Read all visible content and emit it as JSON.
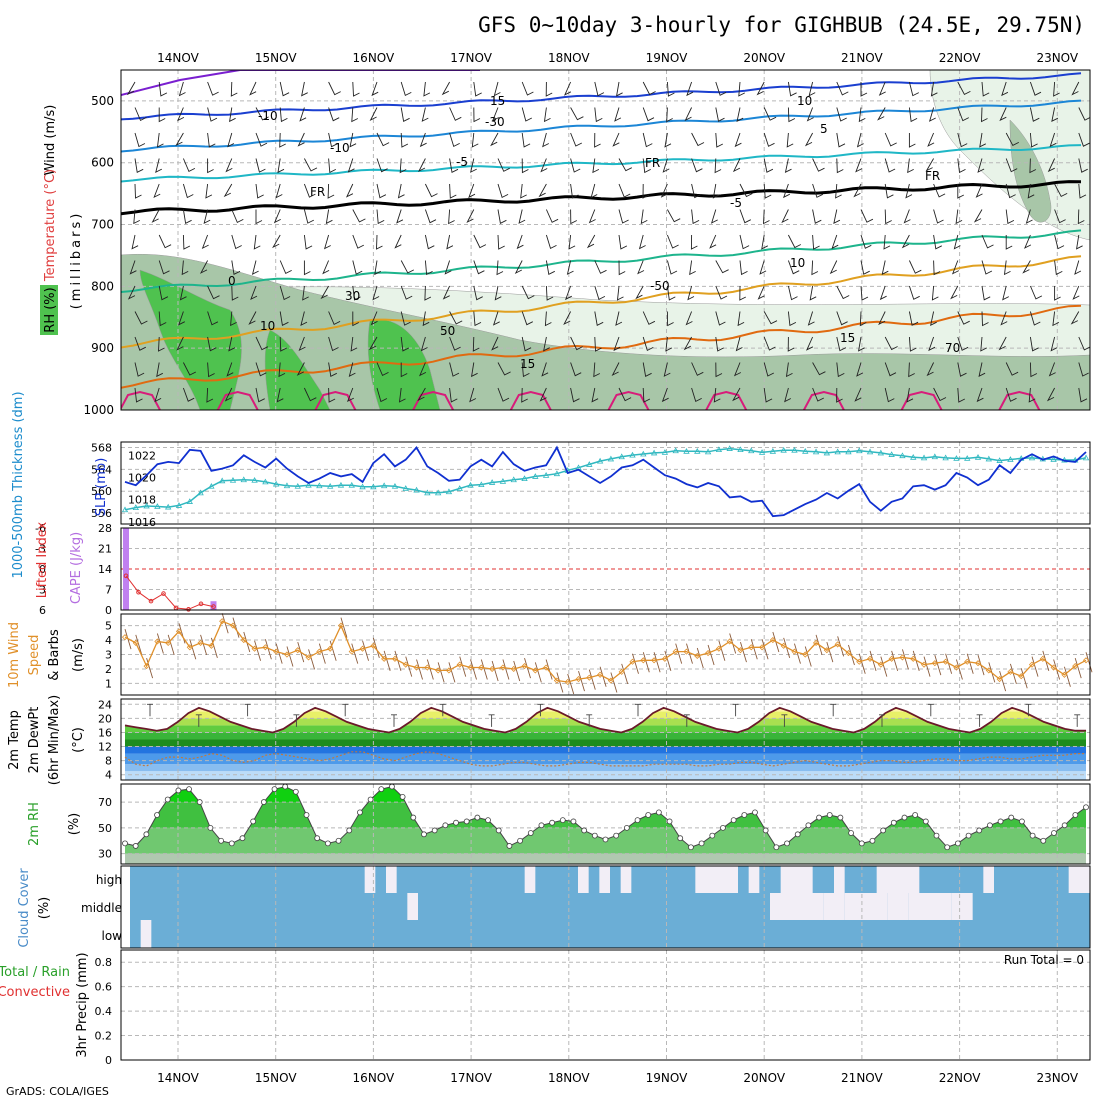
{
  "title": "GFS 0~10day 3-hourly for GIGHBUB (24.5E, 29.75N)",
  "footer": "GrADS: COLA/IGES",
  "dates": [
    "14NOV",
    "15NOV",
    "16NOV",
    "17NOV",
    "18NOV",
    "19NOV",
    "20NOV",
    "21NOV",
    "22NOV",
    "23NOV"
  ],
  "colors": {
    "rh_dark": "#4fc24f",
    "rh_mid": "#a8c6a8",
    "rh_light": "#e8f3e8",
    "cape": "#c080f0",
    "li": "#e03030",
    "wind": "#e0902a",
    "slp": "#1030d0",
    "thick": "#30b8c0",
    "cloud": "#6baed6",
    "cloud_clear": "#f2eef6"
  },
  "upper": {
    "labels": {
      "wind": "Wind (m/s)",
      "temp": "Temperature (°C)",
      "rh": "RH (%)",
      "mb": "(millibars)"
    },
    "levels": [
      "500",
      "600",
      "700",
      "800",
      "900",
      "1000"
    ],
    "contour_labels": [
      "15",
      "10",
      "-10",
      "5",
      "-5",
      "FR",
      "FR",
      "FR",
      "-5",
      "0",
      "10",
      "10",
      "15",
      "15",
      "30",
      "-30",
      "-50",
      "50",
      "70",
      "-10"
    ]
  },
  "slp": {
    "labels": {
      "thick": "1000-500mb Thickness (dm)",
      "slp": "SLP (mb)"
    },
    "left_ticks": [
      "568",
      "564",
      "560",
      "556"
    ],
    "right_ticks": [
      "1022",
      "1020",
      "1018",
      "1016"
    ],
    "chart_data": {
      "type": "line",
      "series": [
        {
          "name": "SLP (mb)",
          "values": [
            1019.6,
            1019.3,
            1020.2,
            1021.2,
            1021.4,
            1021.3,
            1022.5,
            1022.4,
            1020.6,
            1020.8,
            1021.1,
            1022.0,
            1021.4,
            1020.9,
            1021.7,
            1020.8,
            1020.1,
            1019.5,
            1019.9,
            1020.4,
            1020.1,
            1020.3,
            1019.6,
            1021.3,
            1022.1,
            1021.0,
            1021.6,
            1022.7,
            1021.0,
            1020.4,
            1019.7,
            1019.8,
            1021.0,
            1021.6,
            1021.0,
            1022.3,
            1021.2,
            1020.6,
            1020.9,
            1021.1,
            1022.7,
            1020.4,
            1020.7,
            1020.1,
            1019.5,
            1020.1,
            1020.9,
            1021.1,
            1021.6,
            1020.9,
            1020.2,
            1019.9,
            1019.4,
            1019.1,
            1019.5,
            1019.2,
            1018.2,
            1018.3,
            1017.8,
            1017.9,
            1016.5,
            1016.6,
            1017.1,
            1017.6,
            1018.0,
            1018.6,
            1018.1,
            1018.8,
            1019.4,
            1017.8,
            1017.0,
            1017.8,
            1018.1,
            1019.2,
            1019.3,
            1018.9,
            1019.3,
            1020.4,
            1020.0,
            1019.3,
            1019.8,
            1021.1,
            1020.4,
            1021.6,
            1022.1,
            1021.6,
            1021.9,
            1021.5,
            1021.4,
            1022.3
          ]
        },
        {
          "name": "Thickness (dm)",
          "values": [
            556.6,
            557.0,
            557.3,
            557.2,
            557.1,
            557.4,
            558.1,
            559.7,
            560.9,
            561.9,
            562.0,
            562.1,
            562.0,
            561.7,
            561.3,
            561.0,
            560.9,
            561.1,
            561.0,
            560.9,
            561.1,
            561.1,
            560.8,
            560.8,
            561.0,
            560.9,
            560.5,
            560.2,
            559.7,
            559.7,
            559.9,
            560.5,
            561.1,
            561.2,
            561.6,
            561.8,
            562.1,
            562.3,
            562.7,
            562.9,
            563.2,
            563.8,
            564.3,
            564.9,
            565.5,
            565.9,
            566.3,
            566.6,
            566.8,
            567.0,
            567.1,
            567.4,
            567.3,
            567.3,
            567.2,
            567.6,
            567.8,
            567.6,
            567.4,
            567.1,
            567.3,
            567.5,
            567.5,
            567.3,
            567.2,
            567.0,
            567.2,
            567.2,
            567.4,
            567.2,
            567.0,
            566.7,
            566.5,
            566.2,
            566.1,
            566.3,
            566.1,
            566.0,
            566.0,
            566.2,
            565.9,
            565.6,
            565.8,
            566.0,
            566.1,
            565.9,
            565.8,
            565.7,
            565.7,
            566.1
          ]
        }
      ]
    }
  },
  "cape": {
    "labels": {
      "li": "Lifted Index",
      "cape": "CAPE (J/kg)"
    },
    "left_ticks": [
      "-6",
      "-3",
      "0",
      "3",
      "6"
    ],
    "right_ticks": [
      "28",
      "21",
      "14",
      "7",
      "0"
    ],
    "chart_data": {
      "type": "bar",
      "series": [
        {
          "name": "CAPE (J/kg)",
          "values": [
            28,
            0,
            0,
            0,
            0,
            0,
            0,
            3
          ]
        },
        {
          "name": "Lifted Index",
          "values": [
            1.0,
            3.4,
            4.7,
            3.6,
            5.7,
            5.9,
            5.1,
            5.5
          ]
        }
      ]
    }
  },
  "wind10": {
    "labels": {
      "l1": "10m Wind",
      "l2": "Speed",
      "l3": "& Barbs",
      "unit": "(m/s)"
    },
    "ticks": [
      "5",
      "4",
      "3",
      "2",
      "1"
    ],
    "chart_data": {
      "type": "line",
      "series": [
        {
          "name": "10m Wind Speed (m/s)",
          "values": [
            4.2,
            3.8,
            2.2,
            3.9,
            3.8,
            4.6,
            3.5,
            3.8,
            3.6,
            5.3,
            5.0,
            4.0,
            3.4,
            3.5,
            3.2,
            3.0,
            3.3,
            2.8,
            3.2,
            3.4,
            5.0,
            3.2,
            3.4,
            3.6,
            2.7,
            2.7,
            2.3,
            2.1,
            2.1,
            1.9,
            1.9,
            2.3,
            2.1,
            2.1,
            2.0,
            2.1,
            2.0,
            2.2,
            1.9,
            2.1,
            1.2,
            1.1,
            1.3,
            1.4,
            1.6,
            1.2,
            1.8,
            2.5,
            2.6,
            2.6,
            2.7,
            3.2,
            3.2,
            2.9,
            3.1,
            3.4,
            3.9,
            3.3,
            3.5,
            3.5,
            4.0,
            3.6,
            3.2,
            3.0,
            3.8,
            3.3,
            3.7,
            3.1,
            2.5,
            2.7,
            2.3,
            2.7,
            2.8,
            2.7,
            2.3,
            2.4,
            2.5,
            2.1,
            2.5,
            2.4,
            1.9,
            1.3,
            1.8,
            1.5,
            2.3,
            2.7,
            2.1,
            1.6,
            2.2,
            2.6
          ]
        }
      ]
    }
  },
  "temp2m": {
    "labels": {
      "l1": "2m Temp",
      "l2": "2m DewPt",
      "l3": "(6hr Min/Max)",
      "unit": "(°C)"
    },
    "ticks": [
      "24",
      "20",
      "16",
      "12",
      "8",
      "4"
    ],
    "chart_data": {
      "type": "area",
      "series": [
        {
          "name": "2m Temp (°C)",
          "values": [
            18,
            17.5,
            17,
            16.5,
            17,
            19,
            21.5,
            23,
            22,
            20.5,
            19,
            18,
            17,
            16.5,
            16,
            17,
            19,
            21.5,
            23,
            22,
            20.5,
            19,
            18,
            17,
            16.5,
            16,
            17,
            19,
            21.5,
            23,
            22,
            20.5,
            19,
            18,
            17,
            16.5,
            16,
            17,
            19,
            21.5,
            23,
            22,
            20.5,
            19,
            18,
            17,
            16.5,
            16,
            17,
            19,
            21.5,
            23,
            22,
            20.5,
            19,
            18,
            17,
            16.5,
            16,
            17,
            19,
            21.5,
            23,
            22,
            20.5,
            19,
            18,
            17,
            16.5,
            16,
            17,
            19,
            21.5,
            23,
            22,
            20.5,
            19,
            18,
            17,
            16.5,
            16,
            17,
            19,
            21.5,
            23,
            22,
            20.5,
            19,
            18,
            17,
            16.5,
            16.5
          ]
        },
        {
          "name": "2m DewPt (°C)",
          "values": [
            9,
            7,
            6.5,
            8,
            9,
            9,
            8.5,
            9,
            10,
            9.5,
            8,
            7.5,
            8,
            9.5,
            10,
            9.5,
            9,
            8.5,
            8,
            8.5,
            9.5,
            10.5,
            10.5,
            9.5,
            8.5,
            8,
            9,
            10,
            10.5,
            10,
            9,
            8,
            7,
            6.5,
            6.5,
            7,
            7.5,
            7.5,
            7,
            6.5,
            6.5,
            7,
            7.5,
            7.5,
            7,
            6.5,
            6.5,
            6.5,
            6.5,
            7,
            7,
            7,
            7,
            6.5,
            6.5,
            7,
            7,
            7.5,
            7.5,
            7,
            6.5,
            7,
            7.5,
            8,
            7.5,
            7,
            6.5,
            6.5,
            7,
            7.5,
            8,
            8,
            7.5,
            7.5,
            8,
            8.5,
            8.5,
            8,
            8,
            8.5,
            9,
            9,
            8.5,
            8.5,
            9,
            9.5,
            9.5,
            9.5,
            10,
            10
          ]
        }
      ]
    }
  },
  "rh2m": {
    "labels": {
      "l1": "2m RH",
      "unit": "(%)"
    },
    "ticks": [
      "70",
      "50",
      "30"
    ],
    "chart_data": {
      "type": "area",
      "series": [
        {
          "name": "2m RH (%)",
          "values": [
            38,
            36,
            45,
            60,
            72,
            79,
            80,
            70,
            50,
            40,
            38,
            42,
            55,
            70,
            80,
            82,
            78,
            60,
            42,
            38,
            40,
            48,
            62,
            72,
            80,
            82,
            74,
            58,
            45,
            48,
            52,
            54,
            55,
            58,
            56,
            48,
            36,
            40,
            46,
            52,
            54,
            56,
            55,
            48,
            44,
            41,
            44,
            50,
            56,
            60,
            62,
            55,
            42,
            35,
            38,
            44,
            50,
            56,
            60,
            62,
            48,
            35,
            38,
            45,
            52,
            58,
            60,
            58,
            46,
            38,
            40,
            48,
            54,
            58,
            60,
            55,
            44,
            35,
            38,
            44,
            48,
            52,
            55,
            58,
            55,
            44,
            40,
            46,
            52,
            60,
            66
          ]
        }
      ]
    }
  },
  "cloud": {
    "labels": {
      "title": "Cloud Cover",
      "unit": "(%)"
    },
    "levels": [
      "high",
      "middle",
      "low"
    ],
    "chart_data": {
      "type": "heatmap",
      "rows": [
        "high",
        "middle",
        "low"
      ],
      "clear_runs": {
        "high": [
          [
            22,
            23
          ],
          [
            24,
            25
          ],
          [
            37,
            38
          ],
          [
            42,
            43
          ],
          [
            44,
            45
          ],
          [
            46,
            47
          ],
          [
            53,
            54
          ],
          [
            54,
            57
          ],
          [
            58,
            59
          ],
          [
            61,
            63
          ],
          [
            63,
            64
          ],
          [
            66,
            67
          ],
          [
            70,
            74
          ],
          [
            80,
            81
          ],
          [
            88,
            90
          ]
        ],
        "middle": [
          [
            26,
            27
          ],
          [
            60,
            63
          ],
          [
            63,
            65
          ],
          [
            65,
            67
          ],
          [
            67,
            69
          ],
          [
            69,
            71
          ],
          [
            71,
            73
          ],
          [
            73,
            75
          ],
          [
            75,
            77
          ],
          [
            77,
            79
          ]
        ],
        "low": [
          [
            1,
            2
          ]
        ]
      }
    }
  },
  "precip": {
    "labels": {
      "l1": "Total / Rain",
      "l2": "Convective",
      "l3": "3hr Precip (mm)",
      "run_total": "Run Total = 0"
    },
    "ticks": [
      "0.8",
      "0.6",
      "0.4",
      "0.2",
      "0"
    ],
    "chart_data": {
      "type": "bar",
      "ylim": [
        0,
        0.9
      ],
      "series": [
        {
          "name": "3hr Precip (mm)",
          "values": [
            0
          ]
        }
      ]
    }
  }
}
